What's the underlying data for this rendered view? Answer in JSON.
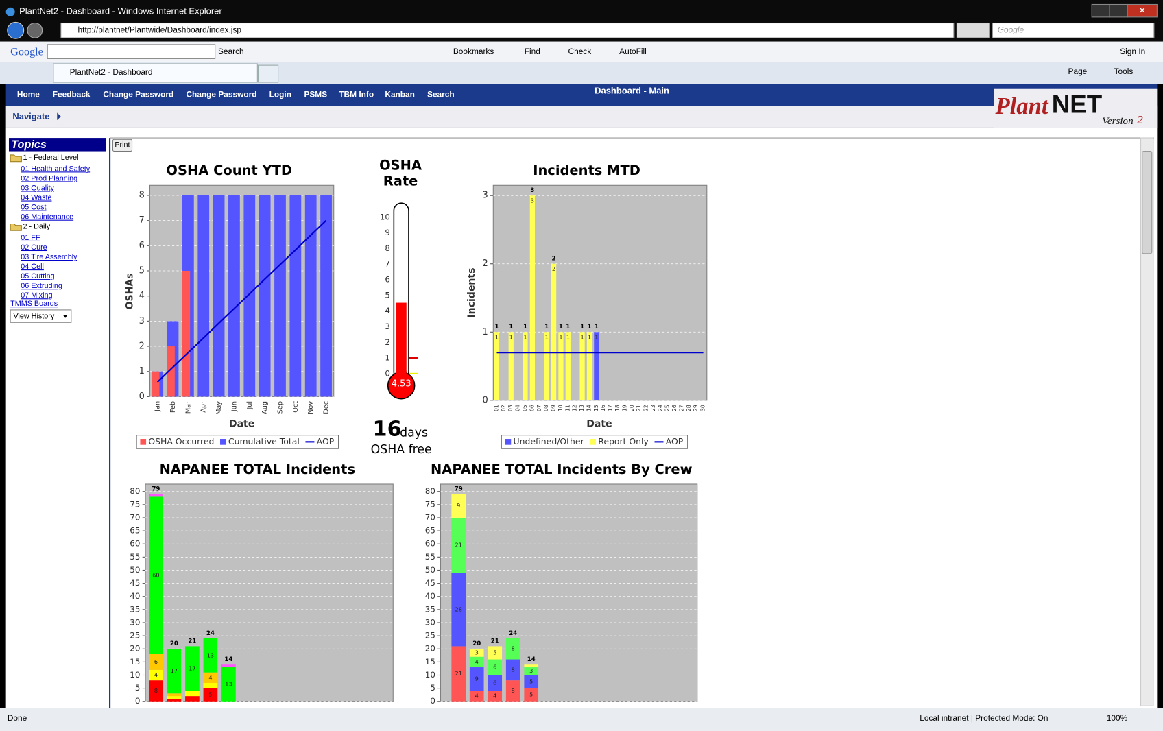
{
  "window_title": "PlantNet2 - Dashboard - Windows Internet Explorer",
  "address_bar": {
    "url": "http://plantnet/Plantwide/Dashboard/index.jsp",
    "search_placeholder": "Google"
  },
  "google_toolbar": {
    "logo": "Google",
    "search_button": "Search",
    "buttons": [
      "Bookmarks",
      "Find",
      "Check",
      "AutoFill"
    ],
    "sign_in": "Sign In"
  },
  "tab": "PlantNet2 - Dashboard",
  "command_bar": [
    "Page",
    "Tools"
  ],
  "nav": {
    "items": [
      "Home",
      "Feedback",
      "Change Password",
      "Change Password",
      "Login",
      "PSMS",
      "TBM Info",
      "Kanban",
      "Search"
    ],
    "page_title": "Dashboard - Main",
    "logo_plant": "Plant",
    "logo_net": "NET",
    "logo_version": "Version",
    "logo_version_num": "2"
  },
  "navigate": "Navigate",
  "sidebar": {
    "title": "Topics",
    "groups": [
      {
        "label": "1 - Federal Level",
        "items": [
          "01 Health and Safety",
          "02 Prod Planning",
          "03 Quality",
          "04 Waste",
          "05 Cost",
          "06 Maintenance"
        ]
      },
      {
        "label": "2 - Daily",
        "items": [
          "01 FF",
          "02 Cure",
          "03 Tire Assembly",
          "04 Cell",
          "05 Cutting",
          "06 Extruding",
          "07 Mixing"
        ]
      }
    ],
    "links": [
      "TMMS Boards"
    ],
    "view_history": "View History"
  },
  "print_button": "Print",
  "osha_free": {
    "days": 16,
    "unit": "days",
    "label": "OSHA free"
  },
  "status_bar": {
    "status": "Done",
    "zone": "Local intranet | Protected Mode: On",
    "zoom": "100%"
  },
  "chart_data": [
    {
      "type": "bar",
      "title": "OSHA Count YTD",
      "xlabel": "Date",
      "ylabel": "OSHAs",
      "categories": [
        "Jan",
        "Feb",
        "Mar",
        "Apr",
        "May",
        "Jun",
        "Jul",
        "Aug",
        "Sep",
        "Oct",
        "Nov",
        "Dec"
      ],
      "series": [
        {
          "name": "OSHA Occurred",
          "color": "#ff5555",
          "values": [
            1,
            2,
            5,
            0,
            0,
            0,
            0,
            0,
            0,
            0,
            0,
            0
          ]
        },
        {
          "name": "Cumulative Total",
          "color": "#5555ff",
          "values": [
            1,
            3,
            8,
            8,
            8,
            8,
            8,
            8,
            8,
            8,
            8,
            8
          ]
        },
        {
          "name": "AOP",
          "color": "#0000cc",
          "type": "line",
          "values": [
            0.58,
            1.17,
            1.75,
            2.33,
            2.92,
            3.5,
            4.08,
            4.67,
            5.25,
            5.83,
            6.42,
            7
          ]
        }
      ],
      "ylim": [
        0,
        8.4
      ],
      "yticks": [
        0,
        1,
        2,
        3,
        4,
        5,
        6,
        7,
        8
      ],
      "grid": true,
      "legend": "bottom"
    },
    {
      "type": "thermometer",
      "title": [
        "OSHA",
        "Rate"
      ],
      "value": 4.53,
      "color": "#ff0000",
      "ylim": [
        0,
        10
      ],
      "yticks": [
        0,
        1,
        2,
        3,
        4,
        5,
        6,
        7,
        8,
        9,
        10
      ],
      "markers": [
        {
          "value": 1,
          "color": "#dd0000"
        },
        {
          "value": 0,
          "color": "#eeee00"
        }
      ]
    },
    {
      "type": "bar",
      "stacked": true,
      "title": "Incidents MTD",
      "xlabel": "Date",
      "ylabel": "Incidents",
      "categories": [
        "01",
        "02",
        "03",
        "04",
        "05",
        "06",
        "07",
        "08",
        "09",
        "10",
        "11",
        "12",
        "13",
        "14",
        "15",
        "16",
        "17",
        "18",
        "19",
        "20",
        "21",
        "22",
        "23",
        "24",
        "25",
        "26",
        "27",
        "28",
        "29",
        "30"
      ],
      "series": [
        {
          "name": "Undefined/Other",
          "color": "#5555ff",
          "values": [
            null,
            null,
            null,
            null,
            null,
            null,
            null,
            null,
            null,
            null,
            null,
            null,
            null,
            null,
            1,
            null,
            null,
            null,
            null,
            null,
            null,
            null,
            null,
            null,
            null,
            null,
            null,
            null,
            null,
            null
          ]
        },
        {
          "name": "Report Only",
          "color": "#ffff55",
          "values": [
            1,
            null,
            1,
            null,
            1,
            3,
            null,
            1,
            2,
            1,
            1,
            null,
            1,
            1,
            null,
            null,
            null,
            null,
            null,
            null,
            null,
            null,
            null,
            null,
            null,
            null,
            null,
            null,
            null,
            null
          ]
        },
        {
          "name": "AOP",
          "color": "#0000cc",
          "type": "line",
          "values": [
            0.7,
            0.7,
            0.7,
            0.7,
            0.7,
            0.7,
            0.7,
            0.7,
            0.7,
            0.7,
            0.7,
            0.7,
            0.7,
            0.7,
            0.7,
            0.7,
            0.7,
            0.7,
            0.7,
            0.7,
            0.7,
            0.7,
            0.7,
            0.7,
            0.7,
            0.7,
            0.7,
            0.7,
            0.7,
            0.7
          ]
        }
      ],
      "totals": [
        1,
        null,
        1,
        null,
        1,
        3,
        null,
        1,
        2,
        1,
        1,
        null,
        1,
        1,
        1,
        null,
        null,
        null,
        null,
        null,
        null,
        null,
        null,
        null,
        null,
        null,
        null,
        null,
        null,
        null
      ],
      "ylim": [
        0,
        3.15
      ],
      "yticks": [
        0,
        1,
        2,
        3
      ],
      "grid": true,
      "legend": "bottom"
    },
    {
      "type": "bar",
      "stacked": true,
      "title": "NAPANEE TOTAL Incidents",
      "categories": [
        null,
        null,
        null,
        null,
        null
      ],
      "series": [
        {
          "color": "#ff0000",
          "values": [
            8,
            1,
            2,
            5,
            0
          ]
        },
        {
          "color": "#ffff00",
          "values": [
            4,
            1,
            2,
            2,
            0
          ]
        },
        {
          "color": "#ffc800",
          "values": [
            6,
            1,
            0,
            4,
            0
          ]
        },
        {
          "color": "#00ff00",
          "values": [
            60,
            17,
            17,
            13,
            13
          ]
        },
        {
          "color": "#ff55ff",
          "values": [
            1,
            0,
            0,
            0,
            1
          ]
        }
      ],
      "totals": [
        79,
        20,
        21,
        24,
        14
      ],
      "ylim": [
        0,
        82.8
      ],
      "yticks": [
        0,
        5,
        10,
        15,
        20,
        25,
        30,
        35,
        40,
        45,
        50,
        55,
        60,
        65,
        70,
        75,
        80
      ],
      "grid": true
    },
    {
      "type": "bar",
      "stacked": true,
      "title": "NAPANEE TOTAL Incidents By Crew",
      "categories": [
        null,
        null,
        null,
        null,
        null
      ],
      "series": [
        {
          "color": "#ff5555",
          "values": [
            21,
            4,
            4,
            8,
            5
          ]
        },
        {
          "color": "#5555ff",
          "values": [
            28,
            9,
            6,
            8,
            5
          ]
        },
        {
          "color": "#55ff55",
          "values": [
            21,
            4,
            6,
            8,
            3
          ]
        },
        {
          "color": "#ffff55",
          "values": [
            9,
            3,
            5,
            0,
            1
          ]
        }
      ],
      "totals": [
        79,
        20,
        21,
        24,
        14
      ],
      "ylim": [
        0,
        82.8
      ],
      "yticks": [
        0,
        5,
        10,
        15,
        20,
        25,
        30,
        35,
        40,
        45,
        50,
        55,
        60,
        65,
        70,
        75,
        80
      ],
      "grid": true
    }
  ]
}
